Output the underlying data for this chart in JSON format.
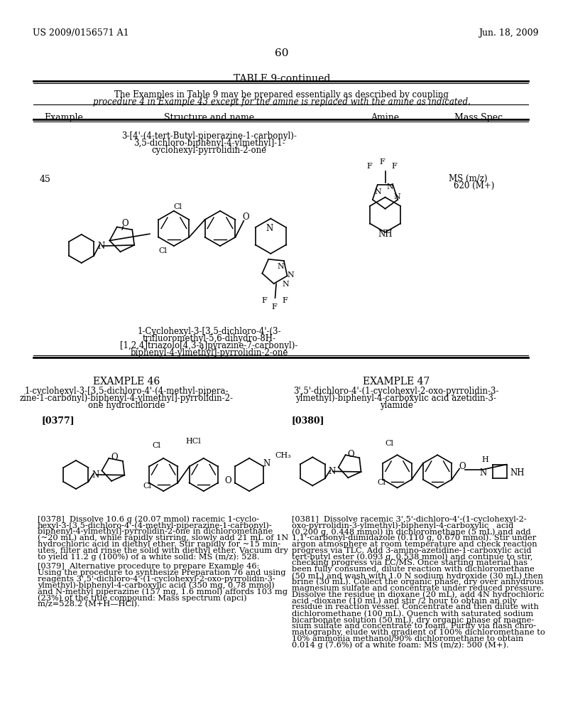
{
  "page_header_left": "US 2009/0156571 A1",
  "page_header_right": "Jun. 18, 2009",
  "page_number": "60",
  "table_title": "TABLE 9-continued",
  "table_note_1": "The Examples in Table 9 may be prepared essentially as described by coupling",
  "table_note_2": "procedure 4 in Example 43 except for the amine is replaced with the amine as indicated.",
  "col_headers": [
    "Example",
    "Structure and name",
    "Amine",
    "Mass Spec"
  ],
  "example_number": "45",
  "compound_name_top_1": "3-[4'-(4-tert-Butyl-piperazine-1-carbonyl)-",
  "compound_name_top_2": "3,5-dichloro-biphenyl-4-ylmethyl]-1-",
  "compound_name_top_3": "cyclohexyl-pyrrolidin-2-one",
  "mass_spec_1": "MS (m/z)",
  "mass_spec_2": "620 (M+)",
  "compound_name_bottom_1": "1-Cyclohexyl-3-[3,5-dichloro-4'-(3-",
  "compound_name_bottom_2": "trifluoromethyl-5,6-dihydro-8H-",
  "compound_name_bottom_3": "[1,2,4]triazolo[4,3-a]pyrazine-7-carbonyl)-",
  "compound_name_bottom_4": "biphenyl-4-ylmethyl]-pyrrolidin-2-one",
  "example46_title": "EXAMPLE 46",
  "example46_name_1": "1-cyclohexyl-3-[3,5-dichloro-4'-(4-methyl-pipera-",
  "example46_name_2": "zine-1-carbonyl)-biphenyl-4-ylmethyl]-pyrrolidin-2-",
  "example46_name_3": "one hydrochloride",
  "example46_ref": "[0377]",
  "example47_title": "EXAMPLE 47",
  "example47_name_1": "3',5'-dichloro-4'-(1-cyclohexyl-2-oxo-pyrrolidin-3-",
  "example47_name_2": "ylmethyl)-biphenyl-4-carboxylic acid azetidin-3-",
  "example47_name_3": "ylamide",
  "example47_ref": "[0380]",
  "para_0378": [
    "[0378]  Dissolve 10.6 g (20.07 mmol) racemic 1-cyclo-",
    "hexyl-3-[3,5-dichloro-4'-(4-methyl-piperazine-1-carbonyl)-",
    "biphenyl-4-ylmethyl]-pyrrolidin-2-one in dichloromethane",
    "(~20 mL) and, while rapidly stirring, slowly add 21 mL of 1N",
    "hydrochloric acid in diethyl ether. Stir rapidly for ~15 min-",
    "utes, filter and rinse the solid with diethyl ether. Vacuum dry",
    "to yield 11.2 g (100%) of a white solid: MS (m/z): 528."
  ],
  "para_0379": [
    "[0379]  Alternative procedure to prepare Example 46:",
    "Using the procedure to synthesize Preparation 76 and using",
    "reagents 3',5'-dichloro-4'-(1-cyclohexyl-2-oxo-pyrrolidin-3-",
    "ylmethyl)-biphenyl-4-carboxylic acid (350 mg, 0.78 mmol)",
    "and N-methyl piperazine (157 mg, 1.6 mmol) affords 103 mg",
    "(23%) of the title compound: Mass spectrum (apci)",
    "m/z=528.2 (M+H—HCl)."
  ],
  "para_0381": [
    "[0381]  Dissolve racemic 3',5'-dichloro-4'-(1-cyclohexyl-2-",
    "oxo-pyrrolidin-3-ylmethyl)-biphenyl-4-carboxylic   acid",
    "(0.200 g, 0.448 mmol) in dichloromethane (5 mL) and add",
    "1,1'-carbonyl-diimidazole (0.110 g, 0.670 mmol). Stir under",
    "argon atmosphere at room temperature and check reaction",
    "progress via TLC. Add 3-amino-azetidine-1-carboxylic acid",
    "tert-butyl ester (0.093 g, 0.538 mmol) and continue to stir,",
    "checking progress via LC/MS. Once starting material has",
    "been fully consumed, dilute reaction with dichloromethane",
    "(50 mL) and wash with 1.0 N sodium hydroxide (30 mL) then",
    "brine (30 mL). Collect the organic phase, dry over anhydrous",
    "magnesium sulfate and concentrate under reduced pressure.",
    "Dissolve the residue in dioxane (20 mL), add 4N hydrochloric",
    "acid -dioxane (10 mL) and stir /2 hour to obtain an oily",
    "residue in reaction vessel. Concentrate and then dilute with",
    "dichloromethane (100 mL). Quench with saturated sodium",
    "bicarbonate solution (50 mL), dry organic phase of magne-",
    "sium sulfate and concentrate to foam. Purify via flash chro-",
    "matography, elude with gradient of 100% dichloromethane to",
    "10% ammonia methanol/90% dichloromethane to obtain",
    "0.014 g (7.6%) of a white foam: MS (m/z): 500 (M+)."
  ],
  "bg_color": "#ffffff"
}
